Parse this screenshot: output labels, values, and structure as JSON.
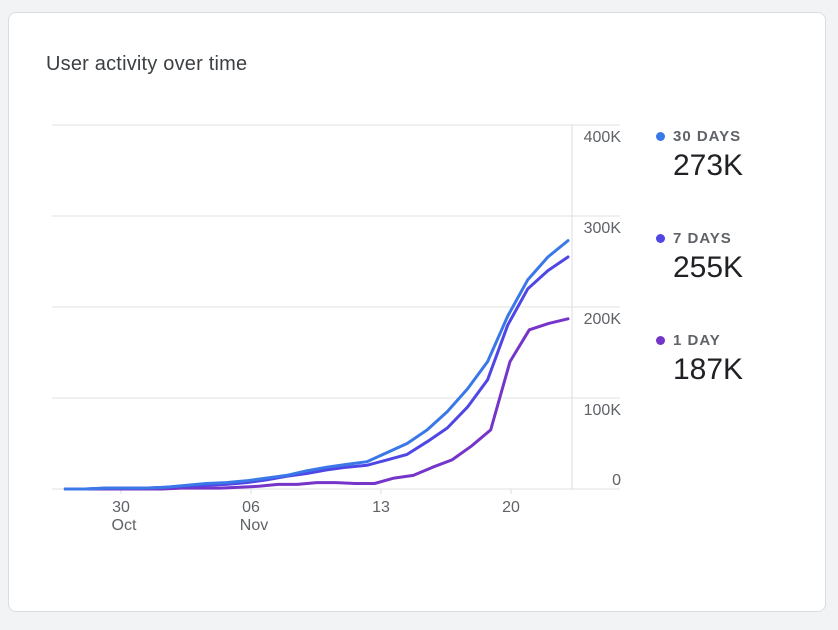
{
  "card": {
    "title": "User activity over time"
  },
  "colors": {
    "grid": "#e0e0e0",
    "axis": "#dadce0"
  },
  "legend": [
    {
      "label": "30 DAYS",
      "value": "273K",
      "color": "#3b78e7"
    },
    {
      "label": "7 DAYS",
      "value": "255K",
      "color": "#4f46e5"
    },
    {
      "label": "1 DAY",
      "value": "187K",
      "color": "#7535c9"
    }
  ],
  "chart_data": {
    "type": "line",
    "title": "User activity over time",
    "xlabel": "",
    "ylabel": "",
    "x_ticks": [
      {
        "label": "30",
        "sublabel": "Oct",
        "day": 4
      },
      {
        "label": "06",
        "sublabel": "Nov",
        "day": 11
      },
      {
        "label": "13",
        "sublabel": "",
        "day": 18
      },
      {
        "label": "20",
        "sublabel": "",
        "day": 25
      }
    ],
    "x_range": [
      1,
      28
    ],
    "ylim": [
      0,
      400000
    ],
    "y_ticks": [
      {
        "label": "400K",
        "value": 400000
      },
      {
        "label": "300K",
        "value": 300000
      },
      {
        "label": "200K",
        "value": 200000
      },
      {
        "label": "100K",
        "value": 100000
      },
      {
        "label": "0",
        "value": 0
      }
    ],
    "grid": true,
    "legend_position": "right",
    "series": [
      {
        "name": "30 DAYS",
        "color": "#3b78e7",
        "values": [
          0,
          0,
          1000,
          1000,
          1000,
          2000,
          4000,
          6000,
          7000,
          9000,
          12000,
          15000,
          20000,
          24000,
          27000,
          30000,
          40000,
          50000,
          65000,
          85000,
          110000,
          140000,
          190000,
          230000,
          255000,
          273000
        ]
      },
      {
        "name": "7 DAYS",
        "color": "#4f46e5",
        "values": [
          0,
          0,
          1000,
          1000,
          1000,
          2000,
          3000,
          4000,
          5000,
          7000,
          10000,
          14000,
          17000,
          21000,
          24000,
          26000,
          32000,
          38000,
          52000,
          67000,
          90000,
          120000,
          180000,
          220000,
          240000,
          255000
        ]
      },
      {
        "name": "1 DAY",
        "color": "#7535c9",
        "values": [
          0,
          0,
          0,
          0,
          0,
          0,
          1000,
          1000,
          1000,
          2000,
          3000,
          5000,
          5000,
          7000,
          7000,
          6000,
          6000,
          12000,
          15000,
          24000,
          32000,
          47000,
          65000,
          140000,
          175000,
          182000,
          187000
        ]
      }
    ]
  }
}
